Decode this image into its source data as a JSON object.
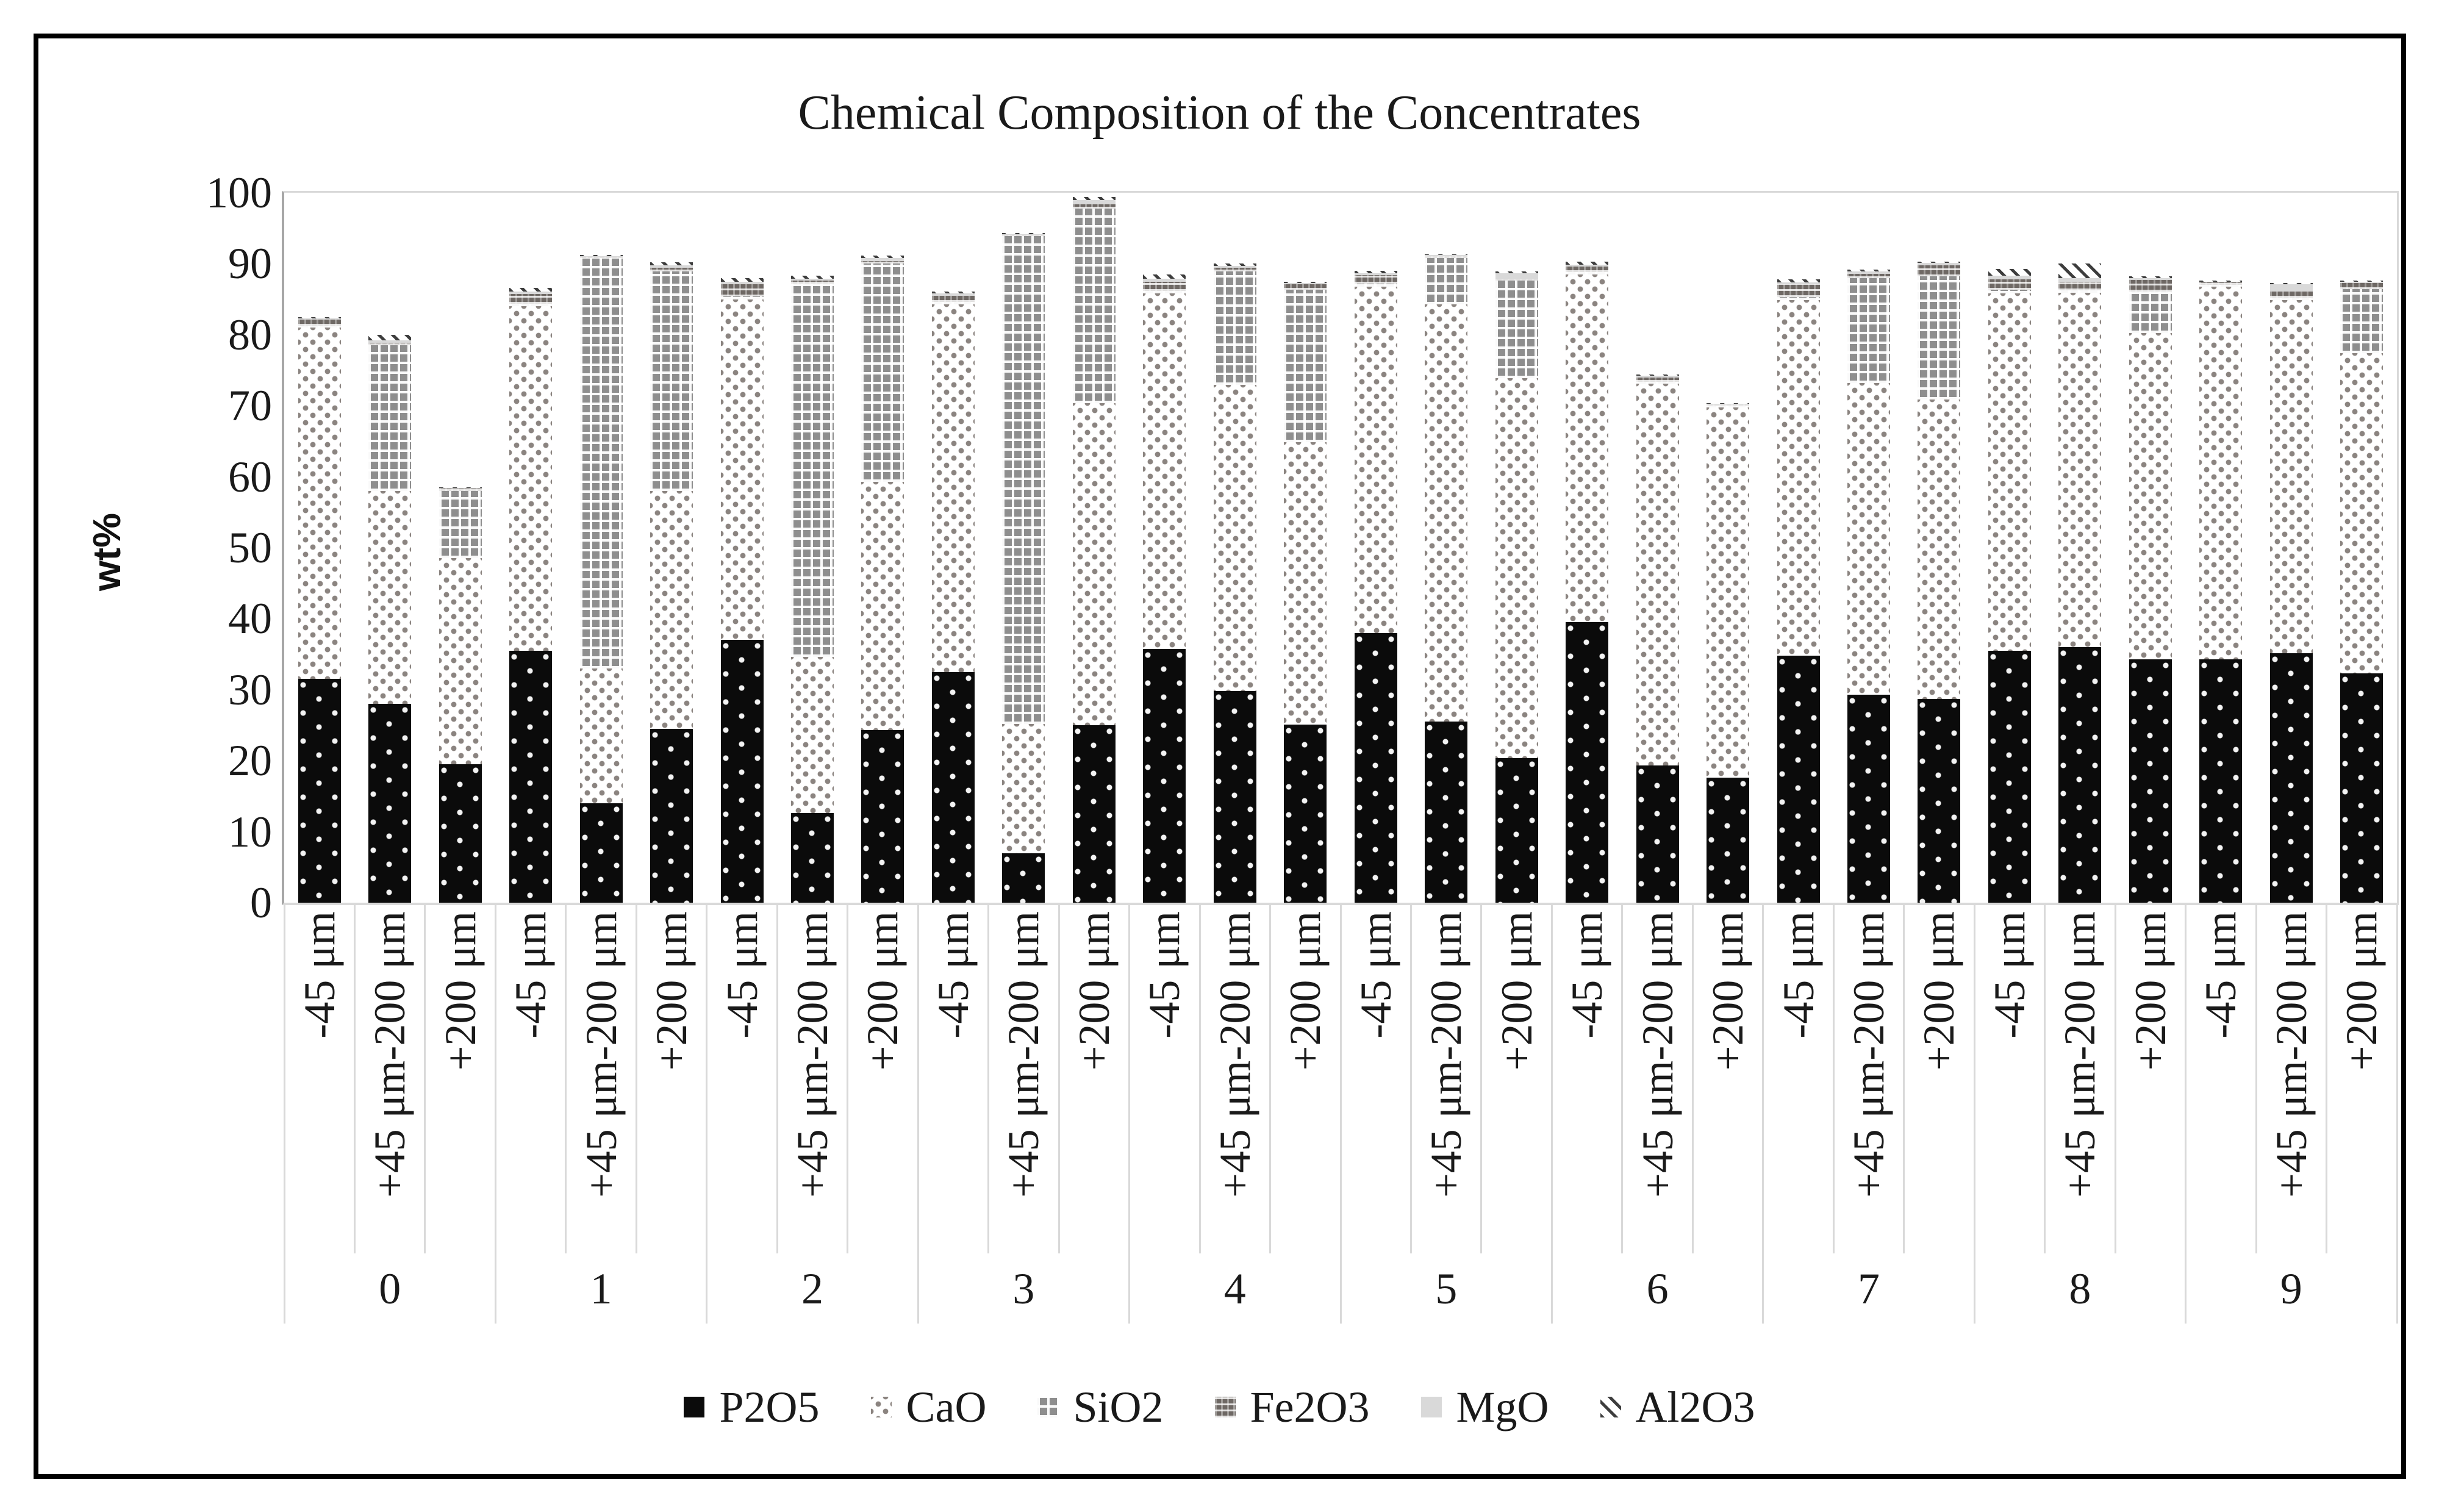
{
  "title": "Chemical Composition of the Concentrates",
  "y_axis": {
    "label": "wt%",
    "ticks": [
      "0",
      "10",
      "20",
      "30",
      "40",
      "50",
      "60",
      "70",
      "80",
      "90",
      "100"
    ]
  },
  "x_axis": {
    "group_labels": [
      "0",
      "1",
      "2",
      "3",
      "4",
      "5",
      "6",
      "7",
      "8",
      "9"
    ],
    "fraction_labels": [
      "-45 μm",
      "+45 μm-200 μm",
      "+200 μm"
    ]
  },
  "legend": {
    "items": [
      {
        "label": "P2O5",
        "key": "p2o5"
      },
      {
        "label": "CaO",
        "key": "cao"
      },
      {
        "label": "SiO2",
        "key": "sio2"
      },
      {
        "label": "Fe2O3",
        "key": "fe2o3"
      },
      {
        "label": "MgO",
        "key": "mgo"
      },
      {
        "label": "Al2O3",
        "key": "al2o3"
      }
    ]
  },
  "colors": {
    "p2o5": "#0b0b0b",
    "cao_dots": "#8b8480",
    "sio2": "#8e8e8e",
    "fe2o3": "#6e6864",
    "mgo": "#d9d9d9",
    "al2o3_hatch": "#3d3d3d",
    "axis": "#a6a6a6",
    "gridline": "#d9d9d9",
    "frame": "#000000"
  },
  "chart_data": {
    "type": "bar",
    "stacked": true,
    "title": "Chemical Composition of the Concentrates",
    "xlabel": "",
    "ylabel": "wt%",
    "ylim": [
      0,
      100
    ],
    "grid": "top-border-only",
    "legend_position": "bottom",
    "group_labels": [
      "0",
      "1",
      "2",
      "3",
      "4",
      "5",
      "6",
      "7",
      "8",
      "9"
    ],
    "fraction_labels": [
      "-45 μm",
      "+45 μm-200 μm",
      "+200 μm"
    ],
    "categories": [
      "0 / -45 μm",
      "0 / +45 μm-200 μm",
      "0 / +200 μm",
      "1 / -45 μm",
      "1 / +45 μm-200 μm",
      "1 / +200 μm",
      "2 / -45 μm",
      "2 / +45 μm-200 μm",
      "2 / +200 μm",
      "3 / -45 μm",
      "3 / +45 μm-200 μm",
      "3 / +200 μm",
      "4 / -45 μm",
      "4 / +45 μm-200 μm",
      "4 / +200 μm",
      "5 / -45 μm",
      "5 / +45 μm-200 μm",
      "5 / +200 μm",
      "6 / -45 μm",
      "6 / +45 μm-200 μm",
      "6 / +200 μm",
      "7 / -45 μm",
      "7 / +45 μm-200 μm",
      "7 / +200 μm",
      "8 / -45 μm",
      "8 / +45 μm-200 μm",
      "8 / +200 μm",
      "9 / -45 μm",
      "9 / +45 μm-200 μm",
      "9 / +200 μm"
    ],
    "series": [
      {
        "name": "P2O5",
        "key": "p2o5",
        "values": [
          31.5,
          28.0,
          19.5,
          35.5,
          14.0,
          24.5,
          37.0,
          12.6,
          24.3,
          32.5,
          7.0,
          25.0,
          35.7,
          29.8,
          25.1,
          38.0,
          25.5,
          20.4,
          39.5,
          19.3,
          17.6,
          34.8,
          29.3,
          28.7,
          35.5,
          36.0,
          34.3,
          34.3,
          35.1,
          32.3
        ]
      },
      {
        "name": "CaO",
        "key": "cao",
        "values": [
          49.5,
          30.0,
          29.0,
          48.5,
          19.0,
          33.5,
          48.0,
          22.0,
          35.0,
          51.8,
          18.2,
          45.4,
          50.1,
          43.1,
          39.8,
          48.8,
          58.8,
          53.5,
          49.0,
          53.8,
          52.2,
          50.1,
          43.9,
          42.2,
          50.3,
          49.9,
          45.9,
          52.5,
          49.8,
          45.1
        ]
      },
      {
        "name": "SiO2",
        "key": "sio2",
        "values": [
          0.3,
          20.5,
          9.5,
          0.4,
          57.8,
          30.9,
          0.4,
          52.6,
          30.7,
          0.3,
          68.7,
          27.4,
          0.4,
          16.0,
          21.4,
          0.4,
          6.5,
          13.7,
          0.3,
          0.3,
          0.2,
          0.4,
          14.8,
          17.3,
          0.5,
          0.4,
          5.9,
          0.2,
          0.3,
          9.0
        ]
      },
      {
        "name": "Fe2O3",
        "key": "fe2o3",
        "values": [
          0.8,
          0.4,
          0.3,
          1.3,
          0.2,
          0.5,
          1.7,
          0.4,
          0.4,
          0.9,
          0.2,
          0.6,
          1.3,
          0.5,
          0.8,
          1.2,
          0.3,
          0.2,
          0.8,
          0.6,
          0.2,
          1.8,
          0.6,
          1.6,
          1.5,
          1.2,
          1.6,
          0.4,
          0.9,
          1.0
        ]
      },
      {
        "name": "MgO",
        "key": "mgo",
        "values": [
          0.2,
          0.3,
          0.1,
          0.4,
          0.1,
          0.4,
          0.4,
          0.3,
          0.4,
          0.3,
          0.1,
          0.6,
          0.4,
          0.3,
          0.2,
          0.3,
          0.1,
          0.9,
          0.3,
          0.2,
          0.1,
          0.3,
          0.3,
          0.3,
          0.5,
          0.5,
          0.3,
          0.1,
          1.0,
          0.1
        ]
      },
      {
        "name": "Al2O3",
        "key": "al2o3",
        "values": [
          0.2,
          0.8,
          0.1,
          0.5,
          0.1,
          0.4,
          0.5,
          0.4,
          0.4,
          0.3,
          0.1,
          0.4,
          0.6,
          0.3,
          0.2,
          0.3,
          0.1,
          0.2,
          0.4,
          0.2,
          0.1,
          0.4,
          0.3,
          0.2,
          1.0,
          2.0,
          0.2,
          0.1,
          0.2,
          0.1
        ]
      }
    ]
  }
}
